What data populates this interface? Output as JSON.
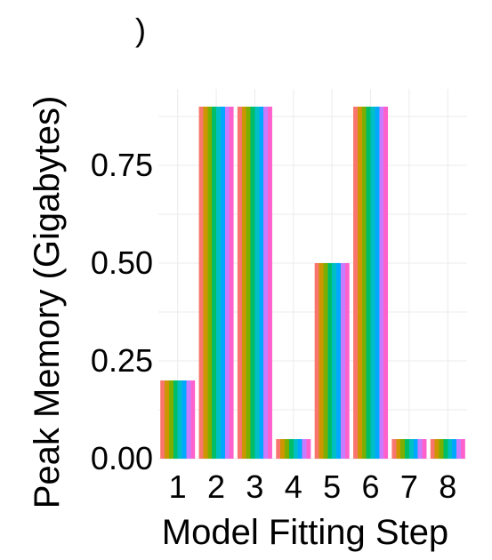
{
  "chart_data": {
    "type": "bar",
    "title": ")",
    "xlabel": "Model Fitting Step",
    "ylabel": "Peak Memory (Gigabytes)",
    "categories": [
      "1",
      "2",
      "3",
      "4",
      "5",
      "6",
      "7",
      "8"
    ],
    "values": [
      0.2,
      0.9,
      0.9,
      0.05,
      0.5,
      0.9,
      0.05,
      0.05
    ],
    "ylim": [
      0,
      0.9
    ],
    "yticks": [
      0.0,
      0.25,
      0.5,
      0.75
    ],
    "ytick_labels": [
      "0.00",
      "0.25",
      "0.50",
      "0.75"
    ],
    "grid": true,
    "legend": "none",
    "bar_stripe_colors": [
      "#F8766D",
      "#CD9600",
      "#7CAE00",
      "#00BE67",
      "#00BFC4",
      "#00A9FF",
      "#C77CFF",
      "#FF61CC"
    ],
    "grid_color": "#EBEBEB"
  }
}
